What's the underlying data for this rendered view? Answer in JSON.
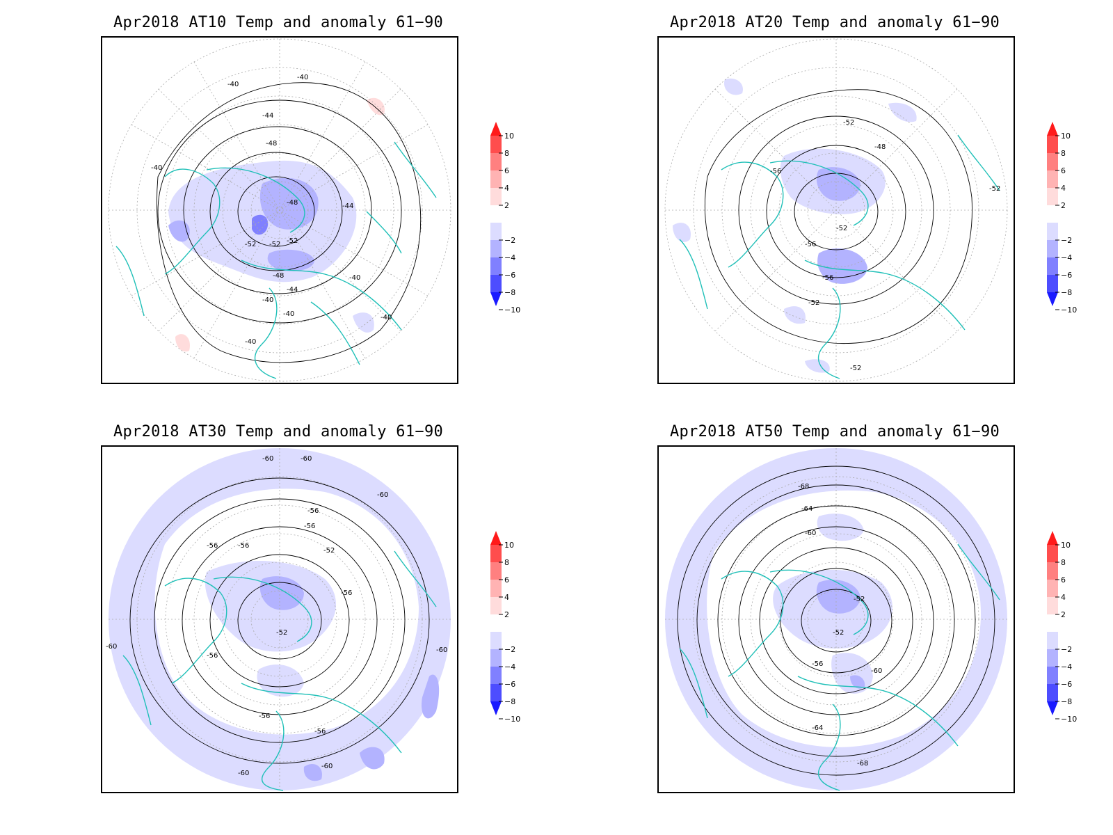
{
  "colors": {
    "anomaly_scale": [
      "#1a1aff",
      "#4d4dff",
      "#8080ff",
      "#b3b3ff",
      "#dcdcff",
      "#ffffff",
      "#ffdcdc",
      "#ffb3b3",
      "#ff8080",
      "#ff4d4d",
      "#ff1a1a"
    ],
    "coastline": "#20c0b8",
    "contour": "#000000",
    "graticule": "#aaaaaa"
  },
  "colorbar": {
    "tick_labels": [
      "10",
      "8",
      "6",
      "4",
      "2",
      "−2",
      "−4",
      "−6",
      "−8",
      "−10"
    ]
  },
  "panels": [
    {
      "title": "Apr2018 AT10 Temp and anomaly 61−90",
      "contour_labels": [
        "-40",
        "-40",
        "-40",
        "-44",
        "-44",
        "-48",
        "-48",
        "-48",
        "-52",
        "-52",
        "-52",
        "-40",
        "-40",
        "-40",
        "-44",
        "-40",
        "-40"
      ]
    },
    {
      "title": "Apr2018 AT20 Temp and anomaly 61−90",
      "contour_labels": [
        "-52",
        "-48",
        "-56",
        "-52",
        "-56",
        "-56",
        "-52",
        "-52",
        "-52"
      ]
    },
    {
      "title": "Apr2018 AT30 Temp and anomaly 61−90",
      "contour_labels": [
        "-60",
        "-60",
        "-60",
        "-56",
        "-56",
        "-56",
        "-56",
        "-52",
        "-56",
        "-52",
        "-56",
        "-56",
        "-56",
        "-60",
        "-60",
        "-60",
        "-60"
      ]
    },
    {
      "title": "Apr2018 AT50 Temp and anomaly 61−90",
      "contour_labels": [
        "-68",
        "-64",
        "-60",
        "-52",
        "-52",
        "-56",
        "-60",
        "-64",
        "-68"
      ]
    }
  ]
}
